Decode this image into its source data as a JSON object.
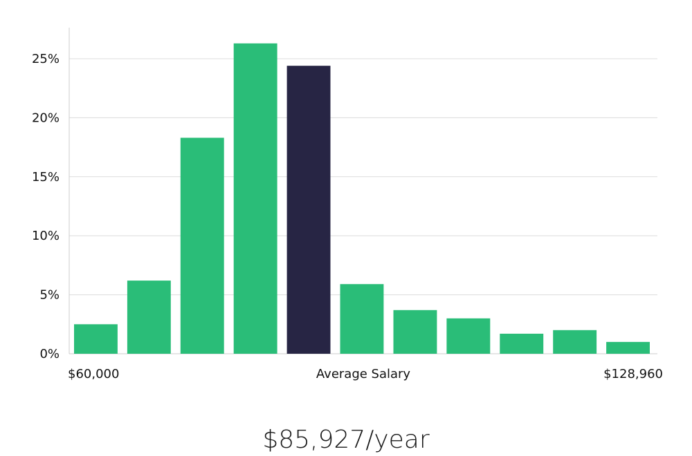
{
  "chart_data": {
    "type": "bar",
    "title": "",
    "xlabel": "Average Salary",
    "ylabel": "",
    "ylim": [
      0,
      27.5
    ],
    "yticks": [
      0,
      5,
      10,
      15,
      20,
      25
    ],
    "ytick_labels": [
      "0%",
      "5%",
      "10%",
      "15%",
      "20%",
      "25%"
    ],
    "grid": true,
    "x_range_labels": {
      "min": "$60,000",
      "center": "Average Salary",
      "max": "$128,960"
    },
    "bins": 11,
    "values": [
      2.5,
      6.2,
      18.3,
      26.3,
      24.4,
      5.9,
      3.7,
      3.0,
      1.7,
      2.0,
      1.0
    ],
    "highlight_index": 4,
    "colors": {
      "bar": "#2abd78",
      "highlight": "#272544",
      "grid": "#dcdcdc",
      "axis": "#cccccc"
    }
  },
  "summary": {
    "average_salary": "$85,927/year"
  }
}
